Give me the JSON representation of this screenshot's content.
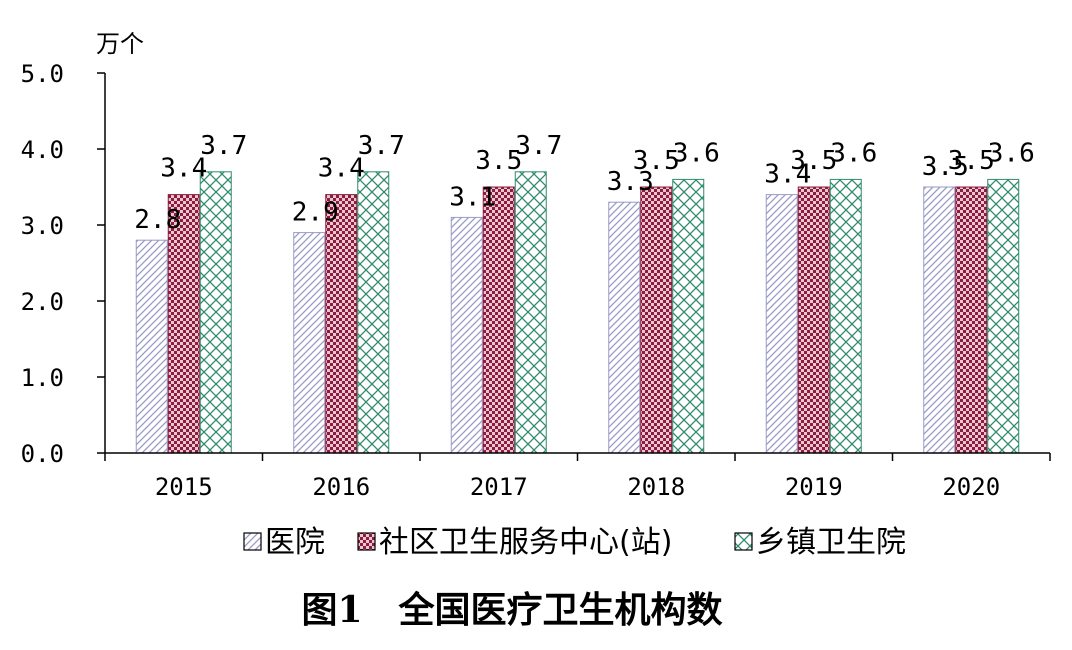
{
  "chart_data": {
    "type": "bar",
    "title": "图1　全国医疗卫生机构数",
    "ylabel": "万个",
    "xlabel": "",
    "ylim": [
      0,
      5
    ],
    "yticks": [
      "0.0",
      "1.0",
      "2.0",
      "3.0",
      "4.0",
      "5.0"
    ],
    "categories": [
      "2015",
      "2016",
      "2017",
      "2018",
      "2019",
      "2020"
    ],
    "grid": false,
    "legend_position": "bottom",
    "series": [
      {
        "name": "医院",
        "values": [
          2.8,
          2.9,
          3.1,
          3.3,
          3.4,
          3.5
        ],
        "labels": [
          "2.8",
          "2.9",
          "3.1",
          "3.3",
          "3.4",
          "3.5"
        ],
        "color": "#9a9ac8",
        "pattern": "diagonal-hatch"
      },
      {
        "name": "社区卫生服务中心(站)",
        "values": [
          3.4,
          3.4,
          3.5,
          3.5,
          3.5,
          3.5
        ],
        "labels": [
          "3.4",
          "3.4",
          "3.5",
          "3.5",
          "3.5",
          "3.5"
        ],
        "color": "#8e1c3e",
        "pattern": "checker"
      },
      {
        "name": "乡镇卫生院",
        "values": [
          3.7,
          3.7,
          3.7,
          3.6,
          3.6,
          3.6
        ],
        "labels": [
          "3.7",
          "3.7",
          "3.7",
          "3.6",
          "3.6",
          "3.6"
        ],
        "color": "#2e8b6a",
        "pattern": "crosshatch"
      }
    ]
  }
}
